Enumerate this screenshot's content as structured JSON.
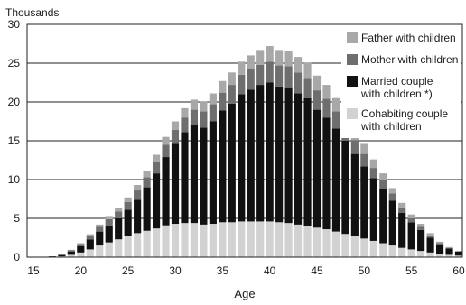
{
  "chart_data": {
    "type": "bar",
    "stacked": true,
    "title": "",
    "unit_label": "Thousands",
    "xlabel": "Age",
    "ylabel": "",
    "ylim": [
      0,
      30
    ],
    "yticks": [
      "0",
      "5",
      "10",
      "15",
      "20",
      "25",
      "30"
    ],
    "xticks": [
      "15",
      "20",
      "25",
      "30",
      "35",
      "40",
      "45",
      "50",
      "55",
      "60"
    ],
    "grid": "horizontal",
    "legend_position": "top-right",
    "x": [
      15,
      16,
      17,
      18,
      19,
      20,
      21,
      22,
      23,
      24,
      25,
      26,
      27,
      28,
      29,
      30,
      31,
      32,
      33,
      34,
      35,
      36,
      37,
      38,
      39,
      40,
      41,
      42,
      43,
      44,
      45,
      46,
      47,
      48,
      49,
      50,
      51,
      52,
      53,
      54,
      55,
      56,
      57,
      58,
      59,
      60
    ],
    "series": [
      {
        "name": "Cohabiting couple with children",
        "color": "#d2d2d2",
        "values": [
          0,
          0,
          0.05,
          0.1,
          0.3,
          0.6,
          1.0,
          1.5,
          1.9,
          2.3,
          2.7,
          3.1,
          3.4,
          3.7,
          4.1,
          4.3,
          4.4,
          4.4,
          4.2,
          4.3,
          4.5,
          4.5,
          4.6,
          4.6,
          4.6,
          4.6,
          4.5,
          4.4,
          4.2,
          4.0,
          3.8,
          3.6,
          3.3,
          3.0,
          2.7,
          2.4,
          2.1,
          1.8,
          1.5,
          1.2,
          1.0,
          0.8,
          0.6,
          0.4,
          0.3,
          0.2
        ]
      },
      {
        "name": "Married couple with children *)",
        "color": "#111111",
        "values": [
          0,
          0,
          0.05,
          0.15,
          0.4,
          0.8,
          1.3,
          1.8,
          2.2,
          2.7,
          3.4,
          4.3,
          5.6,
          7.1,
          8.8,
          10.3,
          11.7,
          12.6,
          12.5,
          13.2,
          14.4,
          15.3,
          16.4,
          17.0,
          17.6,
          17.9,
          17.5,
          17.5,
          16.9,
          16.5,
          15.2,
          14.4,
          13.3,
          12.0,
          10.6,
          9.3,
          8.1,
          7.0,
          5.8,
          4.5,
          3.5,
          2.7,
          1.9,
          1.2,
          0.8,
          0.5
        ]
      },
      {
        "name": "Mother with children",
        "color": "#6e6e6e",
        "values": [
          0,
          0,
          0,
          0.1,
          0.2,
          0.3,
          0.45,
          0.6,
          0.8,
          0.9,
          1.0,
          1.2,
          1.3,
          1.5,
          1.6,
          1.8,
          1.9,
          2.0,
          2.1,
          2.2,
          2.3,
          2.4,
          2.5,
          2.6,
          2.6,
          2.7,
          2.7,
          2.7,
          2.7,
          2.6,
          2.5,
          2.4,
          2.2,
          2.0,
          1.8,
          1.6,
          1.3,
          1.1,
          0.9,
          0.7,
          0.5,
          0.4,
          0.3,
          0.2,
          0.1,
          0.05
        ]
      },
      {
        "name": "Father with children",
        "color": "#a8a8a8",
        "values": [
          0,
          0,
          0,
          0,
          0.05,
          0.1,
          0.2,
          0.3,
          0.4,
          0.5,
          0.6,
          0.7,
          0.8,
          0.9,
          1.0,
          1.1,
          1.2,
          1.3,
          1.3,
          1.4,
          1.5,
          1.6,
          1.7,
          1.8,
          1.9,
          2.0,
          2.0,
          2.0,
          2.0,
          2.0,
          1.9,
          1.8,
          1.7,
          1.6,
          1.5,
          1.3,
          1.1,
          0.9,
          0.7,
          0.6,
          0.5,
          0.4,
          0.3,
          0.2,
          0.1,
          0.05
        ]
      }
    ],
    "legend_order": [
      3,
      2,
      1,
      0
    ]
  }
}
